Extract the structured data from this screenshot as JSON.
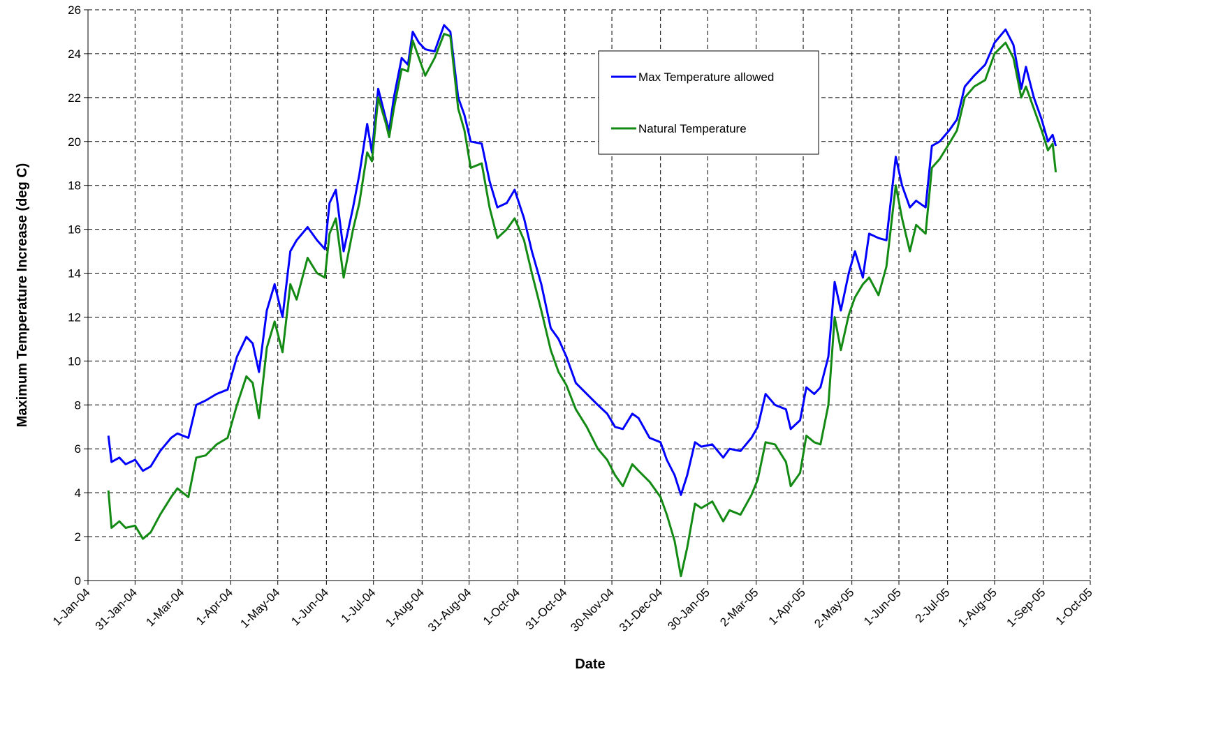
{
  "chart_data": {
    "type": "line",
    "x_label": "Date",
    "y_label": "Maximum Temperature Increase (deg C)",
    "x": [
      "2004-01-14",
      "2004-01-16",
      "2004-01-21",
      "2004-01-25",
      "2004-01-31",
      "2004-02-05",
      "2004-02-10",
      "2004-02-16",
      "2004-02-23",
      "2004-02-27",
      "2004-03-05",
      "2004-03-10",
      "2004-03-16",
      "2004-03-23",
      "2004-03-30",
      "2004-04-05",
      "2004-04-11",
      "2004-04-15",
      "2004-04-19",
      "2004-04-24",
      "2004-04-29",
      "2004-05-04",
      "2004-05-09",
      "2004-05-13",
      "2004-05-20",
      "2004-05-26",
      "2004-05-31",
      "2004-06-03",
      "2004-06-07",
      "2004-06-12",
      "2004-06-18",
      "2004-06-22",
      "2004-06-27",
      "2004-06-30",
      "2004-07-04",
      "2004-07-09",
      "2004-07-11",
      "2004-07-14",
      "2004-07-19",
      "2004-07-23",
      "2004-07-26",
      "2004-07-30",
      "2004-08-03",
      "2004-08-09",
      "2004-08-15",
      "2004-08-19",
      "2004-08-24",
      "2004-08-28",
      "2004-09-01",
      "2004-09-08",
      "2004-09-13",
      "2004-09-18",
      "2004-09-24",
      "2004-09-29",
      "2004-10-05",
      "2004-10-10",
      "2004-10-16",
      "2004-10-22",
      "2004-10-27",
      "2004-11-01",
      "2004-11-07",
      "2004-11-14",
      "2004-11-21",
      "2004-11-27",
      "2004-12-02",
      "2004-12-07",
      "2004-12-13",
      "2004-12-17",
      "2004-12-24",
      "2004-12-31",
      "2005-01-04",
      "2005-01-09",
      "2005-01-13",
      "2005-01-17",
      "2005-01-22",
      "2005-01-26",
      "2005-02-02",
      "2005-02-09",
      "2005-02-13",
      "2005-02-20",
      "2005-02-27",
      "2005-03-03",
      "2005-03-08",
      "2005-03-14",
      "2005-03-21",
      "2005-03-24",
      "2005-03-30",
      "2005-04-03",
      "2005-04-08",
      "2005-04-12",
      "2005-04-17",
      "2005-04-21",
      "2005-04-25",
      "2005-04-30",
      "2005-05-04",
      "2005-05-09",
      "2005-05-13",
      "2005-05-19",
      "2005-05-24",
      "2005-05-30",
      "2005-06-03",
      "2005-06-08",
      "2005-06-12",
      "2005-06-18",
      "2005-06-22",
      "2005-06-27",
      "2005-07-03",
      "2005-07-08",
      "2005-07-13",
      "2005-07-19",
      "2005-07-26",
      "2005-08-01",
      "2005-08-08",
      "2005-08-13",
      "2005-08-18",
      "2005-08-21",
      "2005-08-26",
      "2005-08-31",
      "2005-09-04",
      "2005-09-07",
      "2005-09-09"
    ],
    "series": [
      {
        "name": "Max Temperature allowed",
        "color": "#0000ff",
        "values": [
          6.6,
          5.4,
          5.6,
          5.3,
          5.5,
          5.0,
          5.2,
          5.9,
          6.5,
          6.7,
          6.5,
          8.0,
          8.2,
          8.5,
          8.7,
          10.2,
          11.1,
          10.8,
          9.5,
          12.3,
          13.5,
          12.0,
          15.0,
          15.5,
          16.1,
          15.5,
          15.1,
          17.2,
          17.8,
          15.0,
          17.0,
          18.5,
          20.8,
          19.5,
          22.4,
          21.0,
          20.5,
          22.0,
          23.8,
          23.5,
          25.0,
          24.5,
          24.2,
          24.1,
          25.3,
          25.0,
          22.0,
          21.2,
          20.0,
          19.9,
          18.2,
          17.0,
          17.2,
          17.8,
          16.5,
          15.0,
          13.5,
          11.5,
          11.0,
          10.2,
          9.0,
          8.5,
          8.0,
          7.6,
          7.0,
          6.9,
          7.6,
          7.4,
          6.5,
          6.3,
          5.5,
          4.8,
          3.9,
          4.8,
          6.3,
          6.1,
          6.2,
          5.6,
          6.0,
          5.9,
          6.5,
          7.0,
          8.5,
          8.0,
          7.8,
          6.9,
          7.3,
          8.8,
          8.5,
          8.8,
          10.2,
          13.6,
          12.3,
          14.0,
          15.0,
          13.8,
          15.8,
          15.6,
          15.5,
          19.3,
          18.0,
          17.0,
          17.3,
          17.0,
          19.8,
          20.0,
          20.5,
          21.0,
          22.5,
          23.0,
          23.5,
          24.5,
          25.1,
          24.4,
          22.4,
          23.4,
          22.0,
          21.0,
          20.0,
          20.3,
          19.8
        ]
      },
      {
        "name": "Natural Temperature",
        "color": "#138a13",
        "values": [
          4.1,
          2.4,
          2.7,
          2.4,
          2.5,
          1.9,
          2.2,
          3.0,
          3.8,
          4.2,
          3.8,
          5.6,
          5.7,
          6.2,
          6.5,
          8.0,
          9.3,
          9.0,
          7.4,
          10.6,
          11.8,
          10.4,
          13.5,
          12.8,
          14.7,
          14.0,
          13.8,
          15.8,
          16.5,
          13.8,
          16.0,
          17.2,
          19.5,
          19.1,
          22.0,
          20.8,
          20.2,
          21.5,
          23.3,
          23.2,
          24.6,
          23.8,
          23.0,
          23.8,
          24.9,
          24.8,
          21.5,
          20.5,
          18.8,
          19.0,
          17.0,
          15.6,
          16.0,
          16.5,
          15.5,
          14.0,
          12.3,
          10.5,
          9.5,
          8.9,
          7.8,
          7.0,
          6.0,
          5.5,
          4.8,
          4.3,
          5.3,
          5.0,
          4.5,
          3.8,
          3.0,
          1.8,
          0.2,
          1.5,
          3.5,
          3.3,
          3.6,
          2.7,
          3.2,
          3.0,
          3.9,
          4.6,
          6.3,
          6.2,
          5.4,
          4.3,
          4.9,
          6.6,
          6.3,
          6.2,
          8.0,
          12.0,
          10.5,
          12.1,
          12.9,
          13.5,
          13.8,
          13.0,
          14.3,
          18.0,
          16.5,
          15.0,
          16.2,
          15.8,
          18.8,
          19.2,
          19.9,
          20.5,
          22.0,
          22.5,
          22.8,
          24.0,
          24.5,
          23.8,
          22.0,
          22.5,
          21.5,
          20.5,
          19.6,
          19.9,
          18.6
        ]
      }
    ],
    "xlim": [
      "2004-01-01",
      "2005-10-01"
    ],
    "xticks": [
      {
        "value": "2004-01-01",
        "label": "1-Jan-04"
      },
      {
        "value": "2004-01-31",
        "label": "31-Jan-04"
      },
      {
        "value": "2004-03-01",
        "label": "1-Mar-04"
      },
      {
        "value": "2004-04-01",
        "label": "1-Apr-04"
      },
      {
        "value": "2004-05-01",
        "label": "1-May-04"
      },
      {
        "value": "2004-06-01",
        "label": "1-Jun-04"
      },
      {
        "value": "2004-07-01",
        "label": "1-Jul-04"
      },
      {
        "value": "2004-08-01",
        "label": "1-Aug-04"
      },
      {
        "value": "2004-08-31",
        "label": "31-Aug-04"
      },
      {
        "value": "2004-10-01",
        "label": "1-Oct-04"
      },
      {
        "value": "2004-10-31",
        "label": "31-Oct-04"
      },
      {
        "value": "2004-11-30",
        "label": "30-Nov-04"
      },
      {
        "value": "2004-12-31",
        "label": "31-Dec-04"
      },
      {
        "value": "2005-01-30",
        "label": "30-Jan-05"
      },
      {
        "value": "2005-03-02",
        "label": "2-Mar-05"
      },
      {
        "value": "2005-04-01",
        "label": "1-Apr-05"
      },
      {
        "value": "2005-05-02",
        "label": "2-May-05"
      },
      {
        "value": "2005-06-01",
        "label": "1-Jun-05"
      },
      {
        "value": "2005-07-02",
        "label": "2-Jul-05"
      },
      {
        "value": "2005-08-01",
        "label": "1-Aug-05"
      },
      {
        "value": "2005-09-01",
        "label": "1-Sep-05"
      },
      {
        "value": "2005-10-01",
        "label": "1-Oct-05"
      }
    ],
    "ylim": [
      0,
      26
    ],
    "yticks": [
      0,
      2,
      4,
      6,
      8,
      10,
      12,
      14,
      16,
      18,
      20,
      22,
      24,
      26
    ],
    "grid": true,
    "legend": "upper right"
  }
}
